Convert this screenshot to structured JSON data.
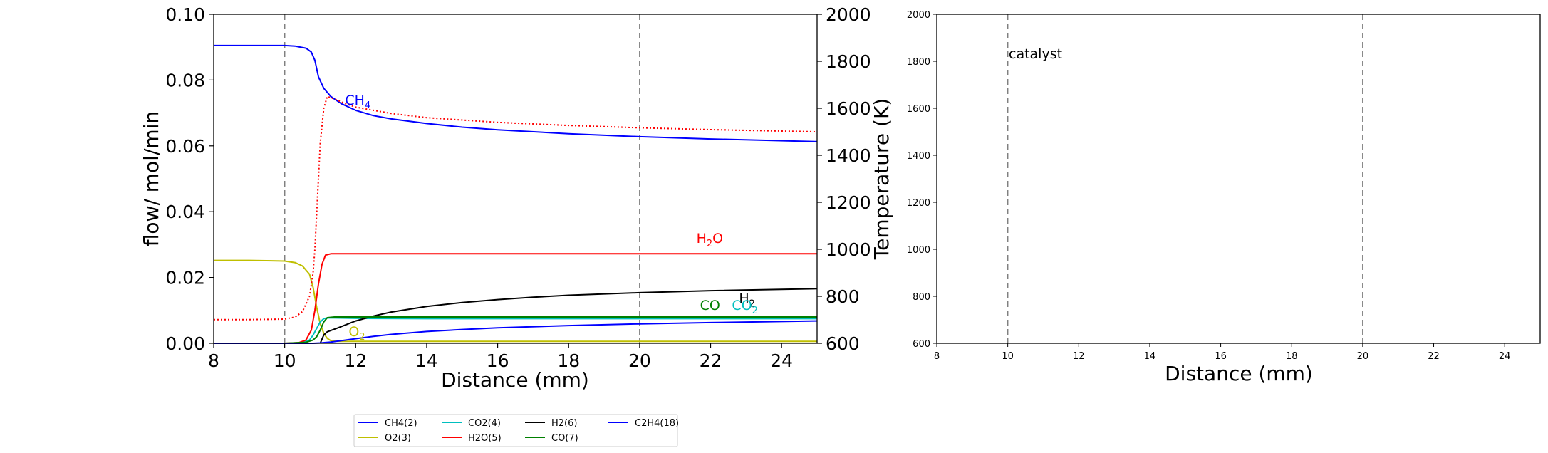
{
  "chart_data": [
    {
      "type": "line",
      "xlabel": "Distance (mm)",
      "ylabel": "flow/ mol/min",
      "y2label": "Temperature (K)",
      "xlim": [
        8,
        25
      ],
      "ylim": [
        0,
        0.1
      ],
      "y2lim": [
        600,
        2000
      ],
      "grid": false,
      "x_ticks": [
        "8",
        "10",
        "12",
        "14",
        "16",
        "18",
        "20",
        "22",
        "24"
      ],
      "y_ticks": [
        "0.00",
        "0.02",
        "0.04",
        "0.06",
        "0.08",
        "0.10"
      ],
      "y2_ticks": [
        "600",
        "800",
        "1000",
        "1200",
        "1400",
        "1600",
        "1800",
        "2000"
      ],
      "vlines": [
        10,
        20
      ],
      "series": [
        {
          "name": "CH4(2)",
          "color": "#0000ff",
          "axis": "left",
          "style": "solid",
          "x": [
            8,
            9,
            10,
            10.3,
            10.6,
            10.75,
            10.85,
            10.95,
            11.1,
            11.3,
            11.6,
            12,
            12.5,
            13,
            14,
            15,
            16,
            18,
            20,
            22,
            25
          ],
          "y": [
            0.0905,
            0.0905,
            0.0905,
            0.0903,
            0.0897,
            0.0885,
            0.086,
            0.081,
            0.0775,
            0.075,
            0.0728,
            0.0708,
            0.0692,
            0.0682,
            0.0668,
            0.0657,
            0.0649,
            0.0637,
            0.0628,
            0.0621,
            0.0613
          ]
        },
        {
          "name": "O2(3)",
          "color": "#bfbf00",
          "axis": "left",
          "style": "solid",
          "x": [
            8,
            9,
            10,
            10.3,
            10.5,
            10.7,
            10.8,
            10.9,
            11.0,
            11.1,
            11.2,
            11.3,
            11.5,
            12,
            14,
            16,
            18,
            20,
            22,
            25
          ],
          "y": [
            0.0252,
            0.0252,
            0.025,
            0.0245,
            0.0235,
            0.021,
            0.017,
            0.011,
            0.006,
            0.003,
            0.0015,
            0.0008,
            0.0006,
            0.0006,
            0.0006,
            0.0006,
            0.0006,
            0.0006,
            0.0006,
            0.0006
          ]
        },
        {
          "name": "CO2(4)",
          "color": "#00bfbf",
          "axis": "left",
          "style": "solid",
          "x": [
            8,
            9,
            10,
            10.5,
            10.7,
            10.8,
            10.9,
            11.0,
            11.1,
            11.2,
            11.4,
            12,
            14,
            16,
            18,
            20,
            22,
            25
          ],
          "y": [
            0,
            0,
            0,
            0.0002,
            0.001,
            0.0025,
            0.0045,
            0.0065,
            0.0075,
            0.0077,
            0.0077,
            0.0076,
            0.0075,
            0.0075,
            0.0075,
            0.0075,
            0.0075,
            0.0075
          ]
        },
        {
          "name": "H2O(5)",
          "color": "#ff0000",
          "axis": "left",
          "style": "solid",
          "x": [
            8,
            9,
            10,
            10.4,
            10.6,
            10.75,
            10.85,
            10.95,
            11.05,
            11.15,
            11.3,
            12,
            14,
            16,
            18,
            20,
            22,
            25
          ],
          "y": [
            0,
            0,
            0,
            0.0002,
            0.001,
            0.004,
            0.01,
            0.018,
            0.024,
            0.0268,
            0.0272,
            0.0272,
            0.0272,
            0.0272,
            0.0272,
            0.0272,
            0.0272,
            0.0272
          ]
        },
        {
          "name": "H2(6)",
          "color": "#000000",
          "axis": "left",
          "style": "solid",
          "x": [
            11.0,
            11.1,
            11.2,
            11.5,
            12,
            12.5,
            13,
            14,
            15,
            16,
            17,
            18,
            20,
            22,
            25
          ],
          "y": [
            0.0,
            0.0025,
            0.0035,
            0.0047,
            0.0068,
            0.0083,
            0.0095,
            0.0112,
            0.0124,
            0.0133,
            0.014,
            0.0146,
            0.0154,
            0.016,
            0.0166
          ]
        },
        {
          "name": "CO(7)",
          "color": "#008000",
          "axis": "left",
          "style": "solid",
          "x": [
            8,
            9,
            10,
            10.6,
            10.8,
            10.9,
            11.0,
            11.1,
            11.2,
            11.4,
            12,
            14,
            16,
            18,
            20,
            22,
            25
          ],
          "y": [
            0,
            0,
            0,
            0.0003,
            0.001,
            0.002,
            0.004,
            0.0065,
            0.0078,
            0.008,
            0.008,
            0.008,
            0.008,
            0.008,
            0.008,
            0.008,
            0.008
          ]
        },
        {
          "name": "C2H4(18)",
          "color": "#0000ff",
          "axis": "left",
          "style": "solid",
          "x": [
            8,
            9,
            10,
            10.8,
            11.0,
            11.3,
            11.6,
            12,
            12.5,
            13,
            14,
            15,
            16,
            18,
            20,
            22,
            25
          ],
          "y": [
            0,
            0,
            0,
            0,
            0.0001,
            0.0004,
            0.0008,
            0.0014,
            0.0021,
            0.0027,
            0.0036,
            0.0042,
            0.0047,
            0.0054,
            0.0059,
            0.0063,
            0.0068
          ]
        },
        {
          "name": "",
          "color": "#ff0000",
          "axis": "right",
          "style": "dotted",
          "x": [
            8,
            9,
            10,
            10.3,
            10.5,
            10.7,
            10.8,
            10.85,
            10.9,
            10.95,
            11.0,
            11.1,
            11.2,
            11.4,
            11.7,
            12,
            13,
            14,
            16,
            18,
            20,
            22,
            25
          ],
          "y": [
            701,
            701,
            703,
            712,
            735,
            800,
            900,
            1000,
            1150,
            1300,
            1450,
            1600,
            1650,
            1640,
            1620,
            1605,
            1578,
            1560,
            1540,
            1527,
            1517,
            1509,
            1500
          ]
        }
      ],
      "annotations": [
        {
          "text": "CH",
          "sub": "4",
          "x": 11.7,
          "y": 0.0725,
          "color": "#0000ff"
        },
        {
          "text": "H",
          "sub": "2",
          "sup_after": "O",
          "x": 21.6,
          "y": 0.0305,
          "color": "#ff0000"
        },
        {
          "text": "H",
          "sub": "2",
          "x": 22.8,
          "y": 0.0122,
          "color": "#000000"
        },
        {
          "text": "CO",
          "sub": "",
          "x": 21.7,
          "y": 0.0102,
          "color": "#008000"
        },
        {
          "text": "CO",
          "sub": "2",
          "x": 22.6,
          "y": 0.0102,
          "color": "#00bfbf"
        },
        {
          "text": "O",
          "sub": "2",
          "x": 11.8,
          "y": 0.0022,
          "color": "#bfbf00"
        }
      ]
    },
    {
      "type": "line",
      "xlabel": "Distance (mm)",
      "xlim": [
        8,
        25
      ],
      "ylim": [
        600,
        2000
      ],
      "grid": false,
      "x_ticks": [
        "8",
        "10",
        "12",
        "14",
        "16",
        "18",
        "20",
        "22",
        "24"
      ],
      "y_ticks": [
        "600",
        "800",
        "1000",
        "1200",
        "1400",
        "1600",
        "1800",
        "2000"
      ],
      "vlines": [
        10,
        20
      ],
      "annotation": "catalyst"
    }
  ]
}
